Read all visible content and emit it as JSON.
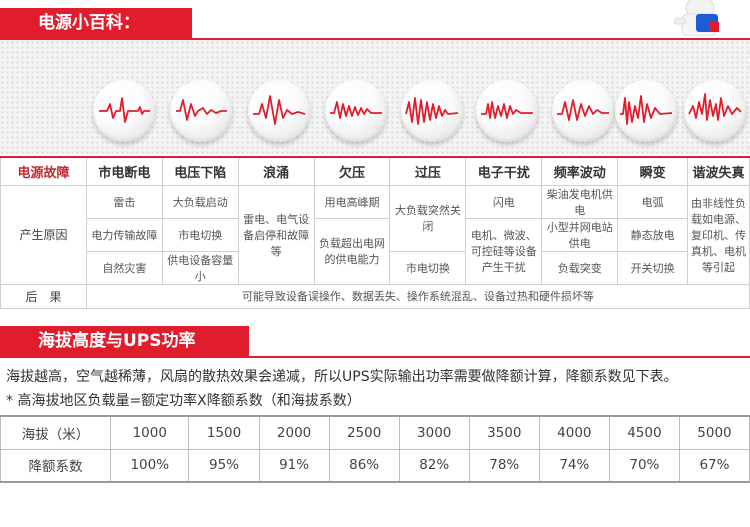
{
  "section1": {
    "title": "电源小百科："
  },
  "section2": {
    "title": "海拔高度与UPS功率"
  },
  "table": {
    "header": [
      "电源故障",
      "市电断电",
      "电压下陷",
      "浪涌",
      "欠压",
      "过压",
      "电子干扰",
      "频率波动",
      "瞬变",
      "谐波失真"
    ],
    "cause_label": "产生原因",
    "result_label": "后　果",
    "result_text": "可能导致设备误操作、数据丢失、操作系统混乱、设备过热和硬件损坏等",
    "causes": {
      "power_cut": [
        "雷击",
        "电力传输故障",
        "自然灾害"
      ],
      "sag": [
        "大负载启动",
        "市电切换",
        "供电设备容量小"
      ],
      "surge": [
        "雷电、电气设备启停和故障等"
      ],
      "under": [
        "用电高峰期",
        "负载超出电网的供电能力"
      ],
      "over": [
        "大负载突然关闭",
        "市电切换"
      ],
      "noise": [
        "闪电",
        "电机、微波、可控硅等设备产生干扰"
      ],
      "freq": [
        "柴油发电机供电",
        "小型并网电站供电",
        "负载突变"
      ],
      "transient": [
        "电弧",
        "静态放电",
        "开关切换"
      ],
      "harmonic": [
        "由非线性负载如电源、复印机、传真机、电机等引起"
      ]
    }
  },
  "paragraph": "海拔越高，空气越稀薄，风扇的散热效果会递减，所以UPS实际输出功率需要做降额计算，降额系数见下表。",
  "note": "* 高海拔地区负载量=额定功率X降额系数（和海拔系数）",
  "altitude": {
    "row1_label": "海拔（米）",
    "row2_label": "降额系数",
    "altitudes": [
      "1000",
      "1500",
      "2000",
      "2500",
      "3000",
      "3500",
      "4000",
      "4500",
      "5000"
    ],
    "factors": [
      "100%",
      "95%",
      "91%",
      "86%",
      "82%",
      "78%",
      "74%",
      "70%",
      "67%"
    ]
  },
  "waveform_icons": [
    "blackout-wave-icon",
    "sag-wave-icon",
    "surge-wave-icon",
    "undervoltage-wave-icon",
    "overvoltage-wave-icon",
    "noise-wave-icon",
    "frequency-wave-icon",
    "transient-wave-icon",
    "harmonic-wave-icon"
  ],
  "accent_color": "#e11d2d"
}
